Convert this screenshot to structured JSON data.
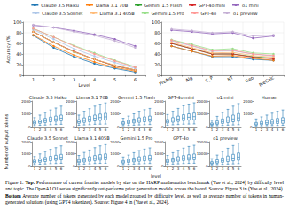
{
  "chart_data": [
    {
      "type": "line",
      "xlabel": "Level",
      "ylabel": "Accuracy (%)",
      "legend": "top",
      "grid": true,
      "marker": "circle",
      "categories": [
        "1",
        "2",
        "3",
        "4",
        "5",
        "6"
      ],
      "ylim": [
        0,
        100
      ],
      "yticks": [
        0,
        20,
        40,
        60,
        80,
        100
      ],
      "series": [
        {
          "name": "Claude 3.5 Haiku",
          "color": "#1f77b4",
          "values": [
            75,
            52,
            35,
            22,
            13,
            6
          ]
        },
        {
          "name": "Llama 3.1 70B",
          "color": "#ff7f0e",
          "values": [
            76,
            55,
            38,
            25,
            15,
            8
          ]
        },
        {
          "name": "Gemini 1.5 Flash",
          "color": "#2ca02c",
          "values": [
            82,
            62,
            44,
            30,
            18,
            10
          ]
        },
        {
          "name": "GPT-4o mini",
          "color": "#d62728",
          "values": [
            82,
            62,
            45,
            30,
            18,
            10
          ]
        },
        {
          "name": "o1 mini",
          "color": "#9467bd",
          "values": [
            94,
            90,
            84,
            77,
            68,
            55
          ]
        },
        {
          "name": "Claude 3.5 Sonnet",
          "color": "#aec7e8",
          "values": [
            86,
            68,
            50,
            36,
            24,
            13
          ]
        },
        {
          "name": "Llama 3.1 405B",
          "color": "#ffbb78",
          "values": [
            82,
            62,
            44,
            30,
            19,
            10
          ]
        },
        {
          "name": "Gemini 1.5 Pro",
          "color": "#98df8a",
          "values": [
            88,
            72,
            56,
            42,
            28,
            16
          ]
        },
        {
          "name": "GPT-4o",
          "color": "#ff9896",
          "values": [
            88,
            72,
            55,
            40,
            27,
            15
          ]
        },
        {
          "name": "o1 preview",
          "color": "#c5b0d5",
          "values": [
            95,
            90,
            82,
            75,
            65,
            52
          ]
        }
      ]
    },
    {
      "type": "line",
      "grid": true,
      "marker": "circle",
      "categories": [
        "PreAlg",
        "Alg",
        "C_P",
        "NT",
        "Geo",
        "PreCalc"
      ],
      "ylim": [
        0,
        100
      ],
      "yticks": [
        0,
        20,
        40,
        60,
        80,
        100
      ],
      "series": [
        {
          "name": "Claude 3.5 Haiku",
          "color": "#1f77b4",
          "values": [
            55,
            45,
            35,
            35,
            30,
            28
          ]
        },
        {
          "name": "Llama 3.1 70B",
          "color": "#ff7f0e",
          "values": [
            55,
            45,
            36,
            37,
            32,
            28
          ]
        },
        {
          "name": "Gemini 1.5 Flash",
          "color": "#2ca02c",
          "values": [
            60,
            50,
            40,
            40,
            35,
            32
          ]
        },
        {
          "name": "GPT-4o mini",
          "color": "#d62728",
          "values": [
            60,
            50,
            40,
            40,
            34,
            31
          ]
        },
        {
          "name": "o1 mini",
          "color": "#9467bd",
          "values": [
            85,
            82,
            78,
            80,
            70,
            74
          ]
        },
        {
          "name": "Claude 3.5 Sonnet",
          "color": "#aec7e8",
          "values": [
            65,
            55,
            45,
            46,
            40,
            36
          ]
        },
        {
          "name": "Llama 3.1 405B",
          "color": "#ffbb78",
          "values": [
            62,
            52,
            42,
            43,
            37,
            34
          ]
        },
        {
          "name": "Gemini 1.5 Pro",
          "color": "#98df8a",
          "values": [
            67,
            58,
            48,
            50,
            42,
            40
          ]
        },
        {
          "name": "GPT-4o",
          "color": "#ff9896",
          "values": [
            66,
            56,
            46,
            47,
            40,
            37
          ]
        },
        {
          "name": "o1 preview",
          "color": "#c5b0d5",
          "values": [
            87,
            84,
            80,
            82,
            74,
            76
          ]
        }
      ]
    },
    {
      "type": "boxplot",
      "title": "Claude 3.5 Haiku",
      "color": "#1f77b4",
      "categories": [
        "1",
        "2",
        "3",
        "4",
        "5",
        "6"
      ],
      "ylim": [
        0,
        2000
      ],
      "yticks": [
        0,
        1000,
        2000
      ],
      "boxes": [
        [
          80,
          200,
          300,
          420,
          700
        ],
        [
          100,
          260,
          380,
          520,
          900
        ],
        [
          120,
          320,
          460,
          640,
          1100
        ],
        [
          150,
          380,
          540,
          740,
          1300
        ],
        [
          160,
          420,
          600,
          820,
          1450
        ],
        [
          180,
          460,
          660,
          900,
          1600
        ]
      ]
    },
    {
      "type": "boxplot",
      "title": "Llama 3.1 70B",
      "color": "#1f77b4",
      "categories": [
        "1",
        "2",
        "3",
        "4",
        "5",
        "6"
      ],
      "ylim": [
        0,
        2000
      ],
      "yticks": [
        0,
        1000,
        2000
      ],
      "boxes": [
        [
          100,
          260,
          380,
          540,
          900
        ],
        [
          130,
          330,
          480,
          680,
          1200
        ],
        [
          150,
          390,
          570,
          800,
          1400
        ],
        [
          180,
          450,
          650,
          900,
          1600
        ],
        [
          190,
          490,
          710,
          980,
          1750
        ],
        [
          200,
          520,
          760,
          1040,
          1850
        ]
      ]
    },
    {
      "type": "boxplot",
      "title": "Gemini 1.5 Flash",
      "color": "#1f77b4",
      "categories": [
        "1",
        "2",
        "3",
        "4",
        "5",
        "6"
      ],
      "ylim": [
        0,
        2000
      ],
      "yticks": [
        0,
        1000,
        2000
      ],
      "boxes": [
        [
          70,
          180,
          270,
          380,
          650
        ],
        [
          90,
          230,
          340,
          480,
          820
        ],
        [
          110,
          290,
          420,
          590,
          1000
        ],
        [
          130,
          340,
          490,
          690,
          1200
        ],
        [
          150,
          380,
          540,
          760,
          1320
        ],
        [
          160,
          410,
          590,
          820,
          1420
        ]
      ]
    },
    {
      "type": "boxplot",
      "title": "GPT-4o mini",
      "color": "#1f77b4",
      "categories": [
        "1",
        "2",
        "3",
        "4",
        "5",
        "6"
      ],
      "ylim": [
        0,
        2000
      ],
      "yticks": [
        0,
        1000,
        2000
      ],
      "boxes": [
        [
          110,
          280,
          400,
          560,
          940
        ],
        [
          140,
          350,
          500,
          700,
          1200
        ],
        [
          160,
          410,
          590,
          820,
          1420
        ],
        [
          190,
          470,
          670,
          930,
          1620
        ],
        [
          200,
          510,
          730,
          1000,
          1760
        ],
        [
          210,
          540,
          780,
          1060,
          1860
        ]
      ]
    },
    {
      "type": "boxplot",
      "title": "o1 mini",
      "color": "#1f77b4",
      "categories": [
        "1",
        "2",
        "3",
        "4",
        "5",
        "6"
      ],
      "ylim": [
        0,
        20000
      ],
      "yticks": [
        0,
        10000,
        20000
      ],
      "boxes": [
        [
          500,
          1200,
          1800,
          2800,
          5000
        ],
        [
          700,
          1800,
          2800,
          4400,
          8000
        ],
        [
          900,
          2500,
          3900,
          6000,
          11000
        ],
        [
          1100,
          3200,
          5000,
          7600,
          13500
        ],
        [
          1300,
          3800,
          6000,
          9000,
          16000
        ],
        [
          1500,
          4300,
          6800,
          10200,
          18000
        ]
      ]
    },
    {
      "type": "boxplot",
      "title": "Human",
      "color": "#1f77b4",
      "categories": [
        "1",
        "2",
        "3",
        "4",
        "5",
        "6"
      ],
      "ylim": [
        0,
        2000
      ],
      "yticks": [
        0,
        1000,
        2000
      ],
      "boxes": [
        [
          50,
          120,
          200,
          320,
          600
        ],
        [
          60,
          150,
          250,
          400,
          760
        ],
        [
          70,
          180,
          300,
          480,
          900
        ],
        [
          80,
          210,
          350,
          560,
          1050
        ],
        [
          90,
          240,
          400,
          640,
          1200
        ],
        [
          100,
          260,
          440,
          700,
          1300
        ]
      ]
    },
    {
      "type": "boxplot",
      "title": "Claude 3.5 Sonnet",
      "color": "#1f77b4",
      "categories": [
        "1",
        "2",
        "3",
        "4",
        "5",
        "6"
      ],
      "ylim": [
        0,
        2000
      ],
      "yticks": [
        0,
        1000,
        2000
      ],
      "boxes": [
        [
          90,
          220,
          330,
          460,
          760
        ],
        [
          110,
          280,
          410,
          560,
          980
        ],
        [
          130,
          340,
          490,
          680,
          1180
        ],
        [
          160,
          400,
          570,
          780,
          1360
        ],
        [
          170,
          440,
          630,
          860,
          1500
        ],
        [
          190,
          480,
          690,
          940,
          1650
        ]
      ]
    },
    {
      "type": "boxplot",
      "title": "Llama 3.1 405B",
      "color": "#1f77b4",
      "categories": [
        "1",
        "2",
        "3",
        "4",
        "5",
        "6"
      ],
      "ylim": [
        0,
        2000
      ],
      "yticks": [
        0,
        1000,
        2000
      ],
      "boxes": [
        [
          90,
          240,
          350,
          500,
          850
        ],
        [
          120,
          300,
          440,
          620,
          1100
        ],
        [
          140,
          360,
          520,
          740,
          1300
        ],
        [
          170,
          420,
          600,
          840,
          1500
        ],
        [
          180,
          460,
          660,
          920,
          1650
        ],
        [
          190,
          490,
          710,
          980,
          1750
        ]
      ]
    },
    {
      "type": "boxplot",
      "title": "Gemini 1.5 Pro",
      "color": "#1f77b4",
      "categories": [
        "1",
        "2",
        "3",
        "4",
        "5",
        "6"
      ],
      "ylim": [
        0,
        2000
      ],
      "yticks": [
        0,
        1000,
        2000
      ],
      "boxes": [
        [
          80,
          200,
          300,
          420,
          720
        ],
        [
          100,
          250,
          370,
          520,
          880
        ],
        [
          120,
          310,
          450,
          630,
          1080
        ],
        [
          140,
          360,
          520,
          730,
          1260
        ],
        [
          160,
          400,
          570,
          800,
          1380
        ],
        [
          170,
          430,
          620,
          860,
          1480
        ]
      ]
    },
    {
      "type": "boxplot",
      "title": "GPT-4o",
      "color": "#1f77b4",
      "categories": [
        "1",
        "2",
        "3",
        "4",
        "5",
        "6"
      ],
      "ylim": [
        0,
        2000
      ],
      "yticks": [
        0,
        1000,
        2000
      ],
      "boxes": [
        [
          100,
          250,
          360,
          500,
          850
        ],
        [
          120,
          310,
          450,
          630,
          1080
        ],
        [
          140,
          370,
          530,
          740,
          1280
        ],
        [
          170,
          420,
          600,
          840,
          1460
        ],
        [
          180,
          460,
          660,
          910,
          1600
        ],
        [
          190,
          490,
          700,
          970,
          1700
        ]
      ]
    },
    {
      "type": "boxplot",
      "title": "o1 preview",
      "color": "#1f77b4",
      "categories": [
        "1",
        "2",
        "3",
        "4",
        "5",
        "6"
      ],
      "ylim": [
        0,
        20000
      ],
      "yticks": [
        0,
        10000,
        20000
      ],
      "boxes": [
        [
          600,
          1400,
          2100,
          3200,
          5800
        ],
        [
          800,
          2000,
          3100,
          4800,
          8800
        ],
        [
          1000,
          2700,
          4200,
          6400,
          11800
        ],
        [
          1200,
          3400,
          5300,
          8000,
          14500
        ],
        [
          1400,
          4000,
          6300,
          9400,
          16800
        ],
        [
          1600,
          4500,
          7100,
          10600,
          18800
        ]
      ]
    }
  ],
  "panel_axes": {
    "xlabel": "level",
    "ylabel": "Number of output tokens"
  },
  "caption": [
    {
      "text": "Figure 1: ",
      "bold": false
    },
    {
      "text": "Top:",
      "bold": true
    },
    {
      "text": " Performance of current frontier models by size on the HARP mathematics benchmark (Yue et al., 2024) by difficulty level and topic. The OpenAI O1 series significantly out-performs prior generation models across the board. Source: Figure 3 in (Yue et al., 2024). ",
      "bold": false
    },
    {
      "text": "Bottom",
      "bold": true
    },
    {
      "text": " Average number of tokens generated by each model grouped by difficulty level, as well as average number of tokens in human-generated solutions (using GPT4 tokenizer). Source: Figure 4 in (Yue et al., 2024).",
      "bold": false
    }
  ]
}
